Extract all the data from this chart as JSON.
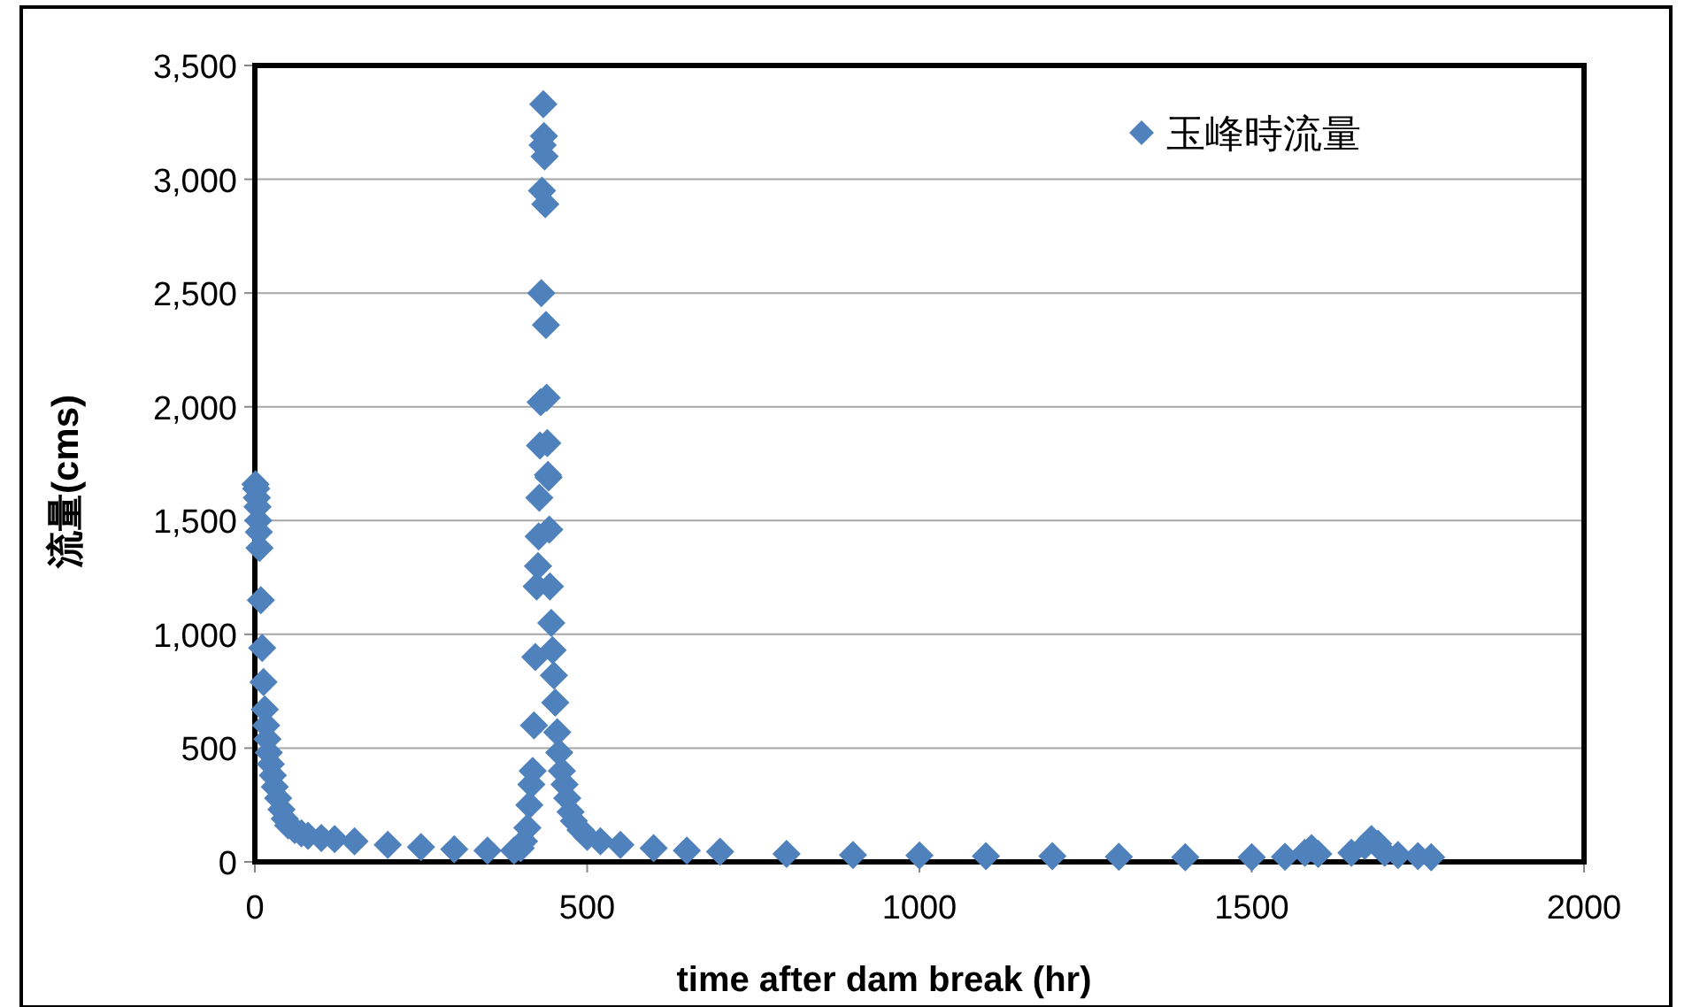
{
  "chart_data": {
    "type": "scatter",
    "xlabel": "time after dam break (hr)",
    "ylabel": "流量(cms)",
    "xlim": [
      0,
      2000
    ],
    "xticks": [
      0,
      500,
      1000,
      1500,
      2000
    ],
    "ylim": [
      0,
      3500
    ],
    "yticks": [
      0,
      {
        "value": 500,
        "label": "500"
      },
      {
        "value": 1000,
        "label": "1,000"
      },
      {
        "value": 1500,
        "label": "1,500"
      },
      {
        "value": 2000,
        "label": "2,000"
      },
      {
        "value": 2500,
        "label": "2,500"
      },
      {
        "value": 3000,
        "label": "3,000"
      },
      {
        "value": 3500,
        "label": "3,500"
      }
    ],
    "grid": "y",
    "legend": "top right",
    "marker": "diamond",
    "series": [
      {
        "name": "玉峰時流量",
        "color": "#4f81bd",
        "x": [
          1,
          2,
          3,
          4,
          5,
          6,
          7,
          9,
          11,
          13,
          15,
          17,
          19,
          21,
          24,
          27,
          30,
          35,
          40,
          45,
          50,
          60,
          70,
          80,
          100,
          120,
          150,
          200,
          250,
          300,
          350,
          390,
          400,
          405,
          410,
          413,
          416,
          418,
          420,
          422,
          424,
          426,
          427,
          428,
          429,
          430,
          431,
          432,
          433,
          434,
          435,
          436,
          437,
          438,
          439,
          440,
          441,
          442,
          443,
          444,
          446,
          448,
          450,
          452,
          455,
          458,
          462,
          466,
          470,
          475,
          480,
          490,
          500,
          520,
          550,
          600,
          650,
          700,
          800,
          900,
          1000,
          1100,
          1200,
          1300,
          1400,
          1500,
          1550,
          1580,
          1590,
          1600,
          1650,
          1670,
          1680,
          1690,
          1700,
          1720,
          1750,
          1770
        ],
        "values": [
          1660,
          1640,
          1600,
          1560,
          1500,
          1450,
          1380,
          1150,
          940,
          790,
          670,
          600,
          540,
          480,
          430,
          380,
          330,
          280,
          230,
          190,
          160,
          140,
          125,
          115,
          105,
          100,
          90,
          75,
          65,
          55,
          50,
          50,
          60,
          90,
          150,
          250,
          340,
          400,
          600,
          900,
          1210,
          1300,
          1430,
          1600,
          1830,
          2020,
          2500,
          2950,
          3150,
          3330,
          3190,
          3100,
          2890,
          2360,
          2040,
          1840,
          1700,
          1690,
          1460,
          1210,
          1050,
          930,
          820,
          700,
          570,
          480,
          400,
          340,
          280,
          220,
          180,
          140,
          110,
          90,
          75,
          60,
          50,
          45,
          35,
          30,
          28,
          25,
          25,
          22,
          20,
          20,
          22,
          40,
          60,
          35,
          40,
          70,
          100,
          80,
          40,
          30,
          25,
          20
        ]
      }
    ]
  }
}
